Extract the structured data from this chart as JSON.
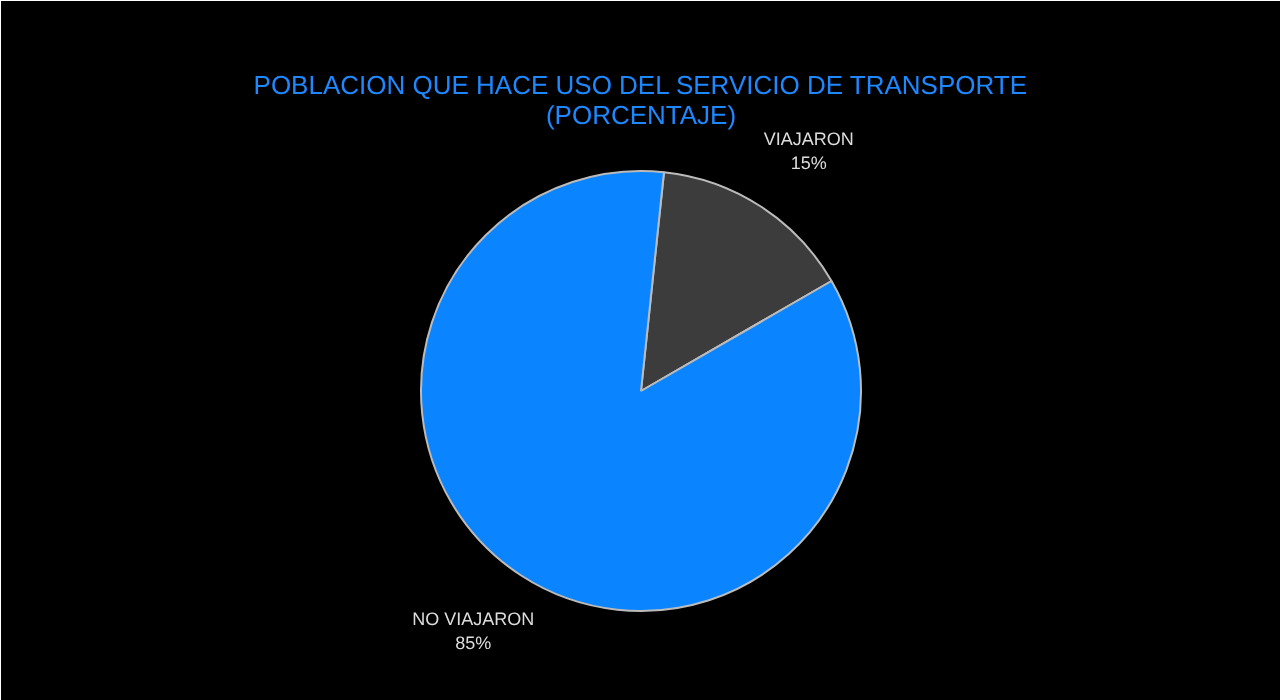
{
  "chart_data": {
    "type": "pie",
    "title": "POBLACION QUE HACE USO DEL SERVICIO DE TRANSPORTE",
    "subtitle": "(PORCENTAJE)",
    "categories": [
      "VIAJARON",
      "NO VIAJARON"
    ],
    "values": [
      15,
      85
    ],
    "colors": [
      "#3c3c3c",
      "#0a84ff"
    ],
    "value_labels": [
      "15%",
      "85%"
    ]
  }
}
